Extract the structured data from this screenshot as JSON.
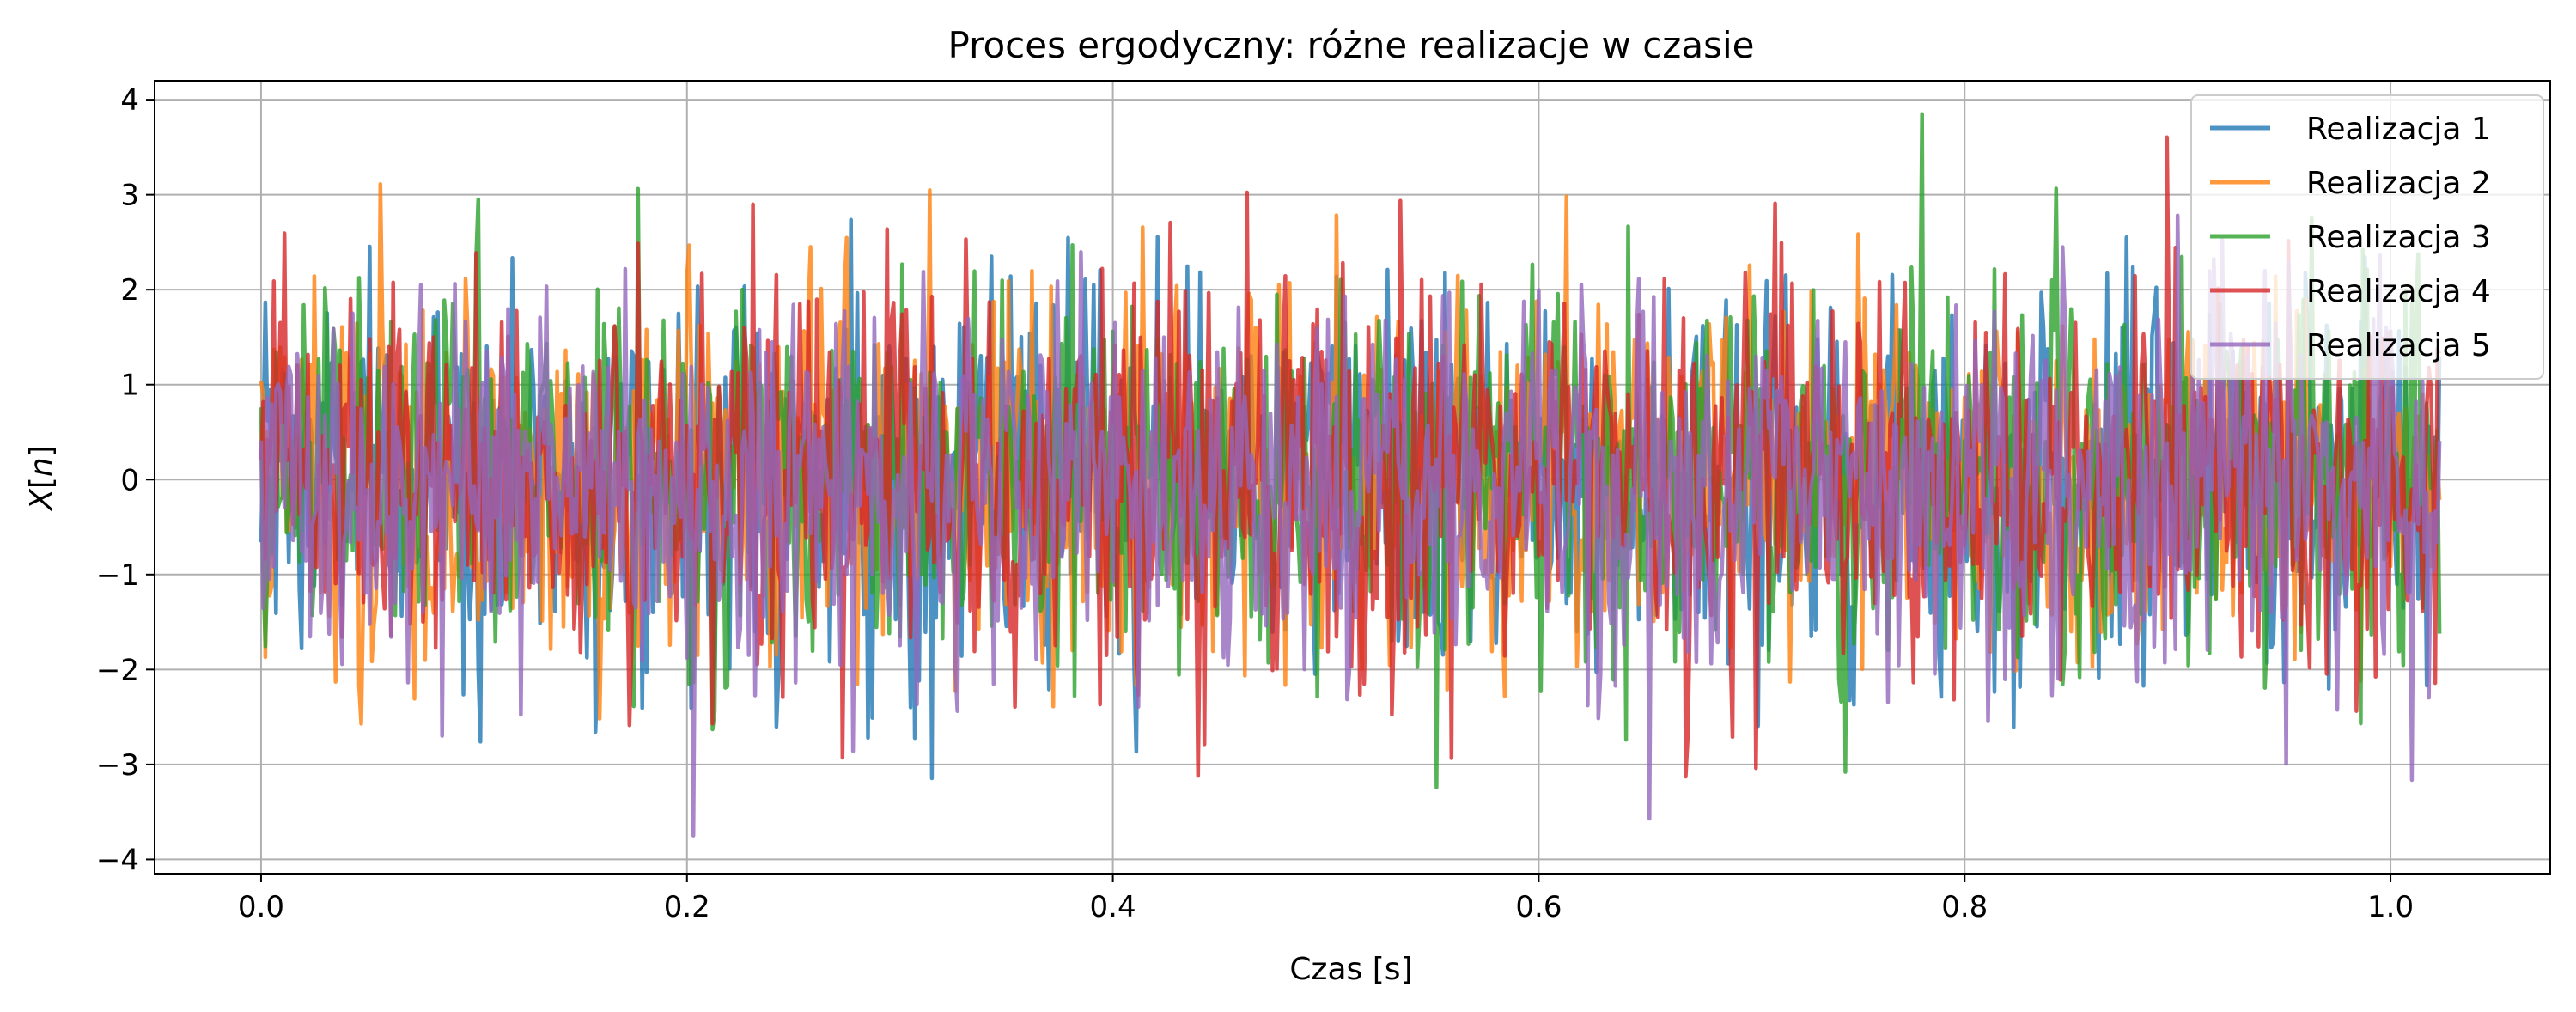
{
  "chart_data": {
    "type": "line",
    "title": "Proces ergodyczny: różne realizacje w czasie",
    "xlabel": "Czas [s]",
    "ylabel_main": "X",
    "ylabel_arg": "n",
    "xlim": [
      -0.05,
      1.075
    ],
    "ylim": [
      -4.15,
      4.2
    ],
    "xticks": [
      0.0,
      0.2,
      0.4,
      0.6,
      0.8,
      1.0
    ],
    "xtick_labels": [
      "0.0",
      "0.2",
      "0.4",
      "0.6",
      "0.8",
      "1.0"
    ],
    "yticks": [
      -4,
      -3,
      -2,
      -1,
      0,
      1,
      2,
      3,
      4
    ],
    "ytick_labels": [
      "−4",
      "−3",
      "−2",
      "−1",
      "0",
      "1",
      "2",
      "3",
      "4"
    ],
    "grid": true,
    "legend_position": "top-right",
    "x_range": [
      0.0,
      1.023
    ],
    "n_samples": 1024,
    "series": [
      {
        "name": "Realizacja 1",
        "color": "#1f77b4",
        "mean": 0,
        "std": 1.0
      },
      {
        "name": "Realizacja 2",
        "color": "#ff7f0e",
        "mean": 0,
        "std": 1.0
      },
      {
        "name": "Realizacja 3",
        "color": "#2ca02c",
        "mean": 0,
        "std": 1.0
      },
      {
        "name": "Realizacja 4",
        "color": "#d62728",
        "mean": 0,
        "std": 1.0
      },
      {
        "name": "Realizacja 5",
        "color": "#9467bd",
        "mean": 0,
        "std": 1.0
      }
    ]
  }
}
